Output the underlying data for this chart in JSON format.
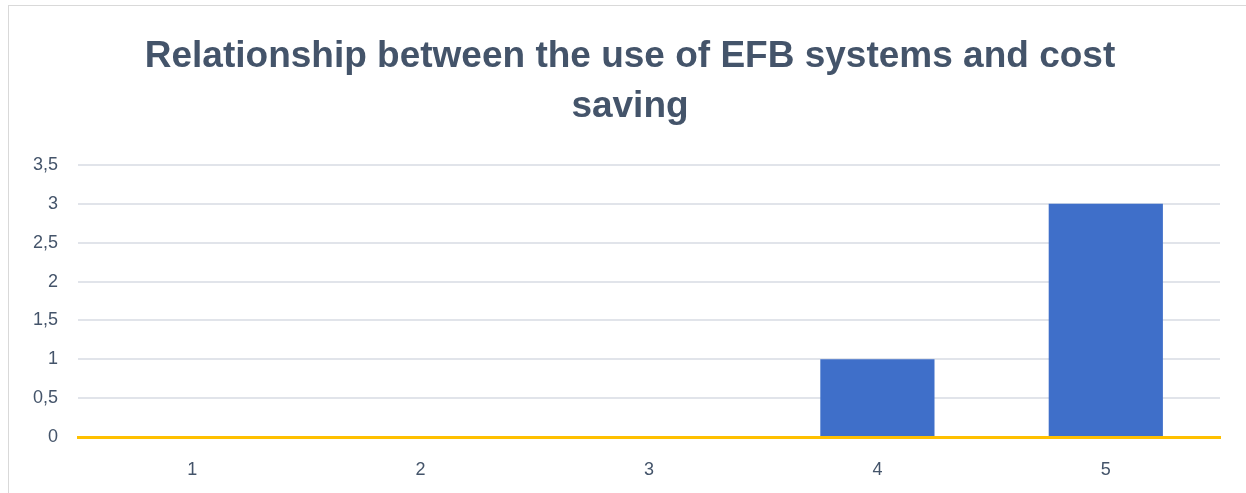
{
  "chart_data": {
    "type": "bar",
    "title": "Relationship between the use of EFB systems and cost saving",
    "categories": [
      "1",
      "2",
      "3",
      "4",
      "5"
    ],
    "values": [
      0,
      0,
      0,
      1,
      3
    ],
    "color": "#3f6fc9",
    "ylim": [
      0,
      3.5
    ],
    "yticks": [
      0,
      {
        "value": 0.5,
        "label": "0,5"
      },
      1,
      {
        "value": 1.5,
        "label": "1,5"
      },
      2,
      {
        "value": 2.5,
        "label": "2,5"
      },
      3,
      {
        "value": 3.5,
        "label": "3,5"
      }
    ],
    "grid": "y"
  }
}
